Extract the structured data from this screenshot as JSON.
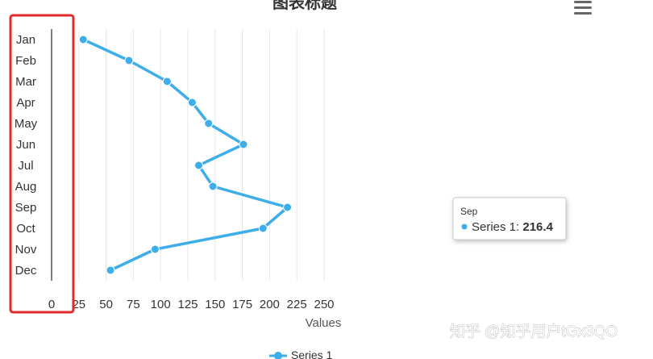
{
  "chart_data": {
    "type": "line",
    "orientation": "horizontal",
    "title": "图表标题",
    "xlabel": "Values",
    "ylabel": "",
    "categories": [
      "Jan",
      "Feb",
      "Mar",
      "Apr",
      "May",
      "Jun",
      "Jul",
      "Aug",
      "Sep",
      "Oct",
      "Nov",
      "Dec"
    ],
    "xlim": [
      0,
      250
    ],
    "x_ticks": [
      "0",
      "25",
      "50",
      "75",
      "100",
      "125",
      "150",
      "175",
      "200",
      "225",
      "250"
    ],
    "series": [
      {
        "name": "Series 1",
        "color": "#3daee9",
        "values": [
          29,
          71,
          106,
          129,
          144,
          176,
          135,
          148,
          216.4,
          194,
          95,
          54
        ]
      }
    ],
    "grid": true,
    "legend": "bottom",
    "tooltip": {
      "category": "Sep",
      "series": "Series 1",
      "label": "Series 1: ",
      "value": "216.4"
    }
  },
  "menu_icon": "hamburger-menu-icon",
  "highlight_color": "#e02a2a",
  "watermark": "知乎 @知乎用户tGx3QO"
}
